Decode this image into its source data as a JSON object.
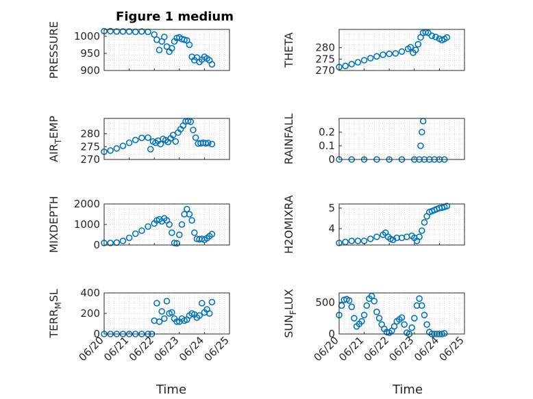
{
  "colors": {
    "marker": "#0072BD",
    "axis": "#262626",
    "grid": "#b8b8b8"
  },
  "chart_data": {
    "type": "scatter",
    "title": "Figure 1 medium",
    "xlabel": "Time",
    "x_ticks": [
      "06/20",
      "06/21",
      "06/22",
      "06/23",
      "06/24",
      "06/25"
    ],
    "grid": "minor dotted",
    "marker": "open circle",
    "subplots": [
      {
        "name": "PRESSURE",
        "ylim": [
          900,
          1020
        ],
        "yticks": [
          "900",
          "950",
          "1000"
        ],
        "x": [
          0.0,
          0.25,
          0.5,
          0.75,
          1.0,
          1.25,
          1.5,
          1.75,
          2.0,
          2.1,
          2.2,
          2.3,
          2.4,
          2.5,
          2.6,
          2.7,
          2.8,
          2.9,
          3.0,
          3.1,
          3.2,
          3.3,
          3.4,
          3.5,
          3.6,
          3.7,
          3.8,
          3.9,
          4.0,
          4.1,
          4.2,
          4.3
        ],
        "y": [
          1015,
          1015,
          1014,
          1014,
          1014,
          1013,
          1014,
          1013,
          1005,
          990,
          960,
          985,
          998,
          970,
          955,
          965,
          985,
          995,
          997,
          992,
          990,
          988,
          975,
          940,
          930,
          938,
          925,
          932,
          940,
          935,
          930,
          918
        ]
      },
      {
        "name": "THETA",
        "ylim": [
          270,
          288
        ],
        "yticks": [
          "270",
          "275",
          "280"
        ],
        "x": [
          0.0,
          0.25,
          0.5,
          0.75,
          1.0,
          1.25,
          1.5,
          1.75,
          2.0,
          2.25,
          2.5,
          2.75,
          2.85,
          2.95,
          3.05,
          3.15,
          3.25,
          3.35,
          3.45,
          3.55,
          3.7,
          3.85,
          4.0,
          4.1,
          4.2,
          4.3
        ],
        "y": [
          271.5,
          272,
          272.8,
          273.6,
          274.5,
          275.4,
          276.2,
          276.9,
          277.3,
          277.5,
          278.3,
          279.5,
          280.2,
          277.8,
          279,
          281.5,
          284.5,
          286.5,
          286.8,
          286.5,
          285.2,
          284.7,
          283.9,
          283.3,
          283.8,
          284.5
        ]
      },
      {
        "name": "AIR_TEMP",
        "ylim": [
          270,
          286
        ],
        "yticks": [
          "270",
          "275",
          "280"
        ],
        "x": [
          0.0,
          0.25,
          0.5,
          0.75,
          1.0,
          1.25,
          1.5,
          1.75,
          1.85,
          1.95,
          2.05,
          2.15,
          2.25,
          2.35,
          2.45,
          2.55,
          2.65,
          2.75,
          2.85,
          2.95,
          3.05,
          3.15,
          3.25,
          3.35,
          3.45,
          3.55,
          3.65,
          3.75,
          3.85,
          3.95,
          4.05,
          4.15,
          4.3
        ],
        "y": [
          273,
          273.5,
          274.3,
          275.3,
          276.5,
          277.6,
          278.4,
          278.5,
          274,
          277,
          276.5,
          277.3,
          276,
          278,
          277.5,
          276.8,
          278.2,
          279.5,
          277,
          280.5,
          281.8,
          283.2,
          284.8,
          285,
          284.7,
          281.5,
          278.5,
          276.2,
          276.3,
          276.5,
          276.3,
          276.4,
          276
        ]
      },
      {
        "name": "RAINFALL",
        "ylim": [
          0,
          0.3
        ],
        "yticks": [
          "0",
          "0.1",
          "0.2"
        ],
        "x": [
          0.0,
          0.5,
          1.0,
          1.5,
          2.0,
          2.5,
          3.0,
          3.2,
          3.25,
          3.3,
          3.35,
          3.4,
          3.6,
          3.8,
          4.0,
          4.2
        ],
        "y": [
          0,
          0,
          0,
          0,
          0,
          0,
          0,
          0,
          0.1,
          0.2,
          0.28,
          0,
          0,
          0,
          0,
          0
        ]
      },
      {
        "name": "MIXDEPTH",
        "ylim": [
          0,
          2000
        ],
        "yticks": [
          "0",
          "1000",
          "2000"
        ],
        "x": [
          0.0,
          0.25,
          0.5,
          0.75,
          1.0,
          1.25,
          1.5,
          1.75,
          2.0,
          2.1,
          2.2,
          2.3,
          2.4,
          2.5,
          2.6,
          2.7,
          2.8,
          2.9,
          3.0,
          3.1,
          3.2,
          3.3,
          3.4,
          3.5,
          3.6,
          3.7,
          3.8,
          3.9,
          4.0,
          4.1,
          4.2,
          4.3
        ],
        "y": [
          100,
          100,
          120,
          200,
          350,
          550,
          700,
          900,
          1050,
          1200,
          1250,
          1150,
          1300,
          1200,
          1000,
          600,
          100,
          80,
          500,
          1000,
          1500,
          1750,
          1500,
          1200,
          600,
          300,
          280,
          300,
          250,
          330,
          430,
          530
        ]
      },
      {
        "name": "H2OMIXRA",
        "ylim": [
          3.2,
          5.2
        ],
        "yticks": [
          "4",
          "5"
        ],
        "x": [
          0.0,
          0.25,
          0.5,
          0.75,
          1.0,
          1.25,
          1.5,
          1.75,
          1.85,
          1.95,
          2.05,
          2.15,
          2.3,
          2.5,
          2.7,
          2.9,
          3.0,
          3.1,
          3.2,
          3.3,
          3.4,
          3.5,
          3.6,
          3.7,
          3.8,
          3.9,
          4.0,
          4.1,
          4.2,
          4.3
        ],
        "y": [
          3.3,
          3.35,
          3.4,
          3.4,
          3.4,
          3.5,
          3.6,
          3.7,
          3.8,
          3.6,
          3.5,
          3.45,
          3.55,
          3.55,
          3.6,
          3.65,
          3.55,
          3.4,
          3.6,
          3.9,
          4.3,
          4.6,
          4.8,
          4.85,
          4.9,
          4.95,
          5.0,
          5.02,
          5.05,
          5.1
        ]
      },
      {
        "name": "TERR_MSL",
        "ylim": [
          0,
          400
        ],
        "yticks": [
          "0",
          "200",
          "400"
        ],
        "x": [
          0.0,
          0.25,
          0.5,
          0.75,
          1.0,
          1.25,
          1.5,
          1.75,
          1.9,
          2.0,
          2.1,
          2.2,
          2.3,
          2.4,
          2.5,
          2.6,
          2.7,
          2.8,
          2.9,
          3.0,
          3.1,
          3.2,
          3.3,
          3.4,
          3.5,
          3.6,
          3.7,
          3.8,
          3.9,
          4.0,
          4.1,
          4.2,
          4.3
        ],
        "y": [
          0,
          0,
          0,
          0,
          0,
          0,
          0,
          0,
          0,
          130,
          300,
          120,
          220,
          150,
          320,
          200,
          210,
          150,
          120,
          120,
          150,
          130,
          140,
          180,
          200,
          190,
          160,
          180,
          300,
          210,
          240,
          200,
          310
        ]
      },
      {
        "name": "SUN_FLUX",
        "ylim": [
          0,
          650
        ],
        "yticks": [
          "0",
          "500"
        ],
        "x": [
          0.0,
          0.1,
          0.2,
          0.3,
          0.4,
          0.5,
          0.6,
          0.7,
          0.8,
          0.9,
          1.0,
          1.1,
          1.2,
          1.3,
          1.4,
          1.5,
          1.6,
          1.7,
          1.8,
          1.9,
          2.0,
          2.1,
          2.2,
          2.3,
          2.4,
          2.5,
          2.6,
          2.7,
          2.8,
          2.9,
          3.0,
          3.1,
          3.2,
          3.3,
          3.4,
          3.5,
          3.6,
          3.7,
          3.8,
          3.9,
          4.0,
          4.1,
          4.2
        ],
        "y": [
          300,
          450,
          540,
          550,
          530,
          430,
          250,
          120,
          160,
          200,
          300,
          450,
          560,
          600,
          520,
          350,
          250,
          150,
          80,
          30,
          20,
          50,
          120,
          200,
          230,
          260,
          150,
          20,
          0,
          100,
          250,
          450,
          560,
          450,
          300,
          150,
          30,
          0,
          0,
          0,
          0,
          0,
          10
        ]
      }
    ]
  }
}
